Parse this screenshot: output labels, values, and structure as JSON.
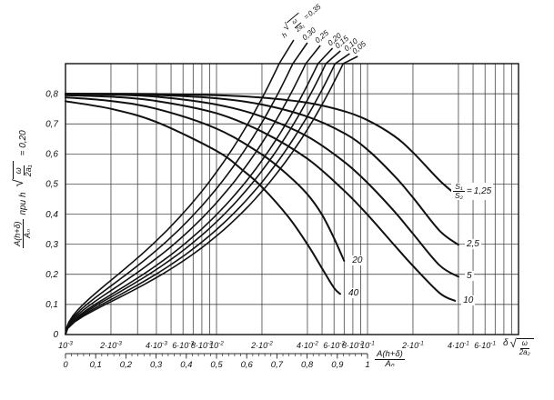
{
  "figure": {
    "background": "#ffffff",
    "ink": "#111111",
    "grid_color": "#2b2b2b"
  },
  "symbols": {
    "sqrt": "√"
  },
  "chart_data": {
    "type": "line",
    "title": "",
    "x_axis": {
      "scale": "log",
      "min": 0.001,
      "max": 1.0,
      "title_prefix": "δ",
      "title_rad_num": "ω",
      "title_rad_den": "2a₂",
      "ticks": [
        {
          "x": 0.001,
          "label": "10^-3"
        },
        {
          "x": 0.002,
          "label": "2·10^-3"
        },
        {
          "x": 0.004,
          "label": "4·10^-3"
        },
        {
          "x": 0.006,
          "label": "6·10^-3"
        },
        {
          "x": 0.008,
          "label": "8·10^-3"
        },
        {
          "x": 0.01,
          "label": "10^-2"
        },
        {
          "x": 0.02,
          "label": "2·10^-2"
        },
        {
          "x": 0.04,
          "label": "4·10^-2"
        },
        {
          "x": 0.06,
          "label": "6·10^-2"
        },
        {
          "x": 0.08,
          "label": "8·10^-2"
        },
        {
          "x": 0.1,
          "label": "10^-1"
        },
        {
          "x": 0.2,
          "label": "2·10^-1"
        },
        {
          "x": 0.4,
          "label": "4·10^-1"
        },
        {
          "x": 0.6,
          "label": "6·10^-1"
        }
      ],
      "minor_multiples_first_decade": [
        2,
        3,
        4,
        5,
        6,
        7,
        8,
        9
      ],
      "minor_multiples_other_decades": [
        2,
        4,
        5,
        6,
        7,
        8,
        9
      ],
      "grid": true
    },
    "y_axis": {
      "scale": "linear",
      "min": 0,
      "max": 0.9,
      "title_frac_num": "A(h+δ)",
      "title_frac_den": "Aₙ",
      "title_mid": "при h",
      "title_rad_num": "ω",
      "title_rad_den": "2a₁",
      "title_suffix": "= 0,20",
      "ticks": [
        {
          "v": 0.8,
          "label": "0,8"
        },
        {
          "v": 0.7,
          "label": "0,7"
        },
        {
          "v": 0.6,
          "label": "0,6"
        },
        {
          "v": 0.5,
          "label": "0,5"
        },
        {
          "v": 0.4,
          "label": "0,4"
        },
        {
          "v": 0.3,
          "label": "0,3"
        },
        {
          "v": 0.2,
          "label": "0,2"
        },
        {
          "v": 0.1,
          "label": "0,1"
        },
        {
          "v": 0.0,
          "label": "0"
        }
      ],
      "grid": true
    },
    "secondary_x_axis": {
      "min": 0,
      "max": 1,
      "labels": [
        "0",
        "0,1",
        "0,2",
        "0,3",
        "0,4",
        "0,5",
        "0,6",
        "0,7",
        "0,8",
        "0,9",
        "1"
      ],
      "minor_step": 0.02,
      "title_frac_num": "A(h+δ)",
      "title_frac_den": "Aₙ"
    },
    "descending_family": {
      "title_frac_num": "S₁",
      "title_frac_den": "S₂",
      "title_eq": "=",
      "series": [
        {
          "label": "1,25",
          "points": [
            [
              0.001,
              0.8
            ],
            [
              0.002,
              0.8
            ],
            [
              0.004,
              0.799
            ],
            [
              0.01,
              0.795
            ],
            [
              0.02,
              0.787
            ],
            [
              0.04,
              0.77
            ],
            [
              0.07,
              0.742
            ],
            [
              0.1,
              0.712
            ],
            [
              0.15,
              0.66
            ],
            [
              0.2,
              0.605
            ],
            [
              0.3,
              0.512
            ],
            [
              0.4,
              0.458
            ]
          ]
        },
        {
          "label": "2,5",
          "points": [
            [
              0.001,
              0.8
            ],
            [
              0.002,
              0.799
            ],
            [
              0.004,
              0.796
            ],
            [
              0.01,
              0.785
            ],
            [
              0.02,
              0.764
            ],
            [
              0.04,
              0.724
            ],
            [
              0.07,
              0.669
            ],
            [
              0.1,
              0.614
            ],
            [
              0.15,
              0.528
            ],
            [
              0.2,
              0.455
            ],
            [
              0.3,
              0.345
            ],
            [
              0.4,
              0.298
            ]
          ]
        },
        {
          "label": "5",
          "points": [
            [
              0.001,
              0.799
            ],
            [
              0.002,
              0.797
            ],
            [
              0.004,
              0.79
            ],
            [
              0.01,
              0.764
            ],
            [
              0.02,
              0.724
            ],
            [
              0.04,
              0.658
            ],
            [
              0.07,
              0.574
            ],
            [
              0.1,
              0.504
            ],
            [
              0.15,
              0.41
            ],
            [
              0.2,
              0.335
            ],
            [
              0.3,
              0.23
            ],
            [
              0.4,
              0.192
            ]
          ]
        },
        {
          "label": "10",
          "points": [
            [
              0.001,
              0.795
            ],
            [
              0.002,
              0.79
            ],
            [
              0.004,
              0.776
            ],
            [
              0.01,
              0.735
            ],
            [
              0.02,
              0.674
            ],
            [
              0.04,
              0.584
            ],
            [
              0.07,
              0.478
            ],
            [
              0.1,
              0.398
            ],
            [
              0.15,
              0.298
            ],
            [
              0.2,
              0.228
            ],
            [
              0.3,
              0.138
            ],
            [
              0.38,
              0.112
            ]
          ]
        },
        {
          "label": "20",
          "points": [
            [
              0.001,
              0.788
            ],
            [
              0.002,
              0.776
            ],
            [
              0.004,
              0.75
            ],
            [
              0.01,
              0.684
            ],
            [
              0.02,
              0.598
            ],
            [
              0.03,
              0.528
            ],
            [
              0.04,
              0.466
            ],
            [
              0.05,
              0.398
            ],
            [
              0.06,
              0.32
            ],
            [
              0.07,
              0.245
            ]
          ]
        },
        {
          "label": "40",
          "points": [
            [
              0.001,
              0.775
            ],
            [
              0.002,
              0.75
            ],
            [
              0.004,
              0.706
            ],
            [
              0.01,
              0.61
            ],
            [
              0.015,
              0.545
            ],
            [
              0.02,
              0.49
            ],
            [
              0.03,
              0.39
            ],
            [
              0.04,
              0.3
            ],
            [
              0.05,
              0.22
            ],
            [
              0.06,
              0.155
            ],
            [
              0.066,
              0.135
            ]
          ]
        }
      ]
    },
    "ascending_family": {
      "title_prefix": "h",
      "title_rad_num": "ω",
      "title_rad_den": "2a₁",
      "title_eq": "=",
      "origin": [
        0.001,
        0
      ],
      "lines": [
        {
          "label": "0,35",
          "x_top": 0.026
        },
        {
          "label": "0,30",
          "x_top": 0.032
        },
        {
          "label": "0,25",
          "x_top": 0.039
        },
        {
          "label": "0,20",
          "x_top": 0.047
        },
        {
          "label": "0,15",
          "x_top": 0.053
        },
        {
          "label": "0,10",
          "x_top": 0.061
        },
        {
          "label": "0,05",
          "x_top": 0.069
        }
      ]
    }
  }
}
